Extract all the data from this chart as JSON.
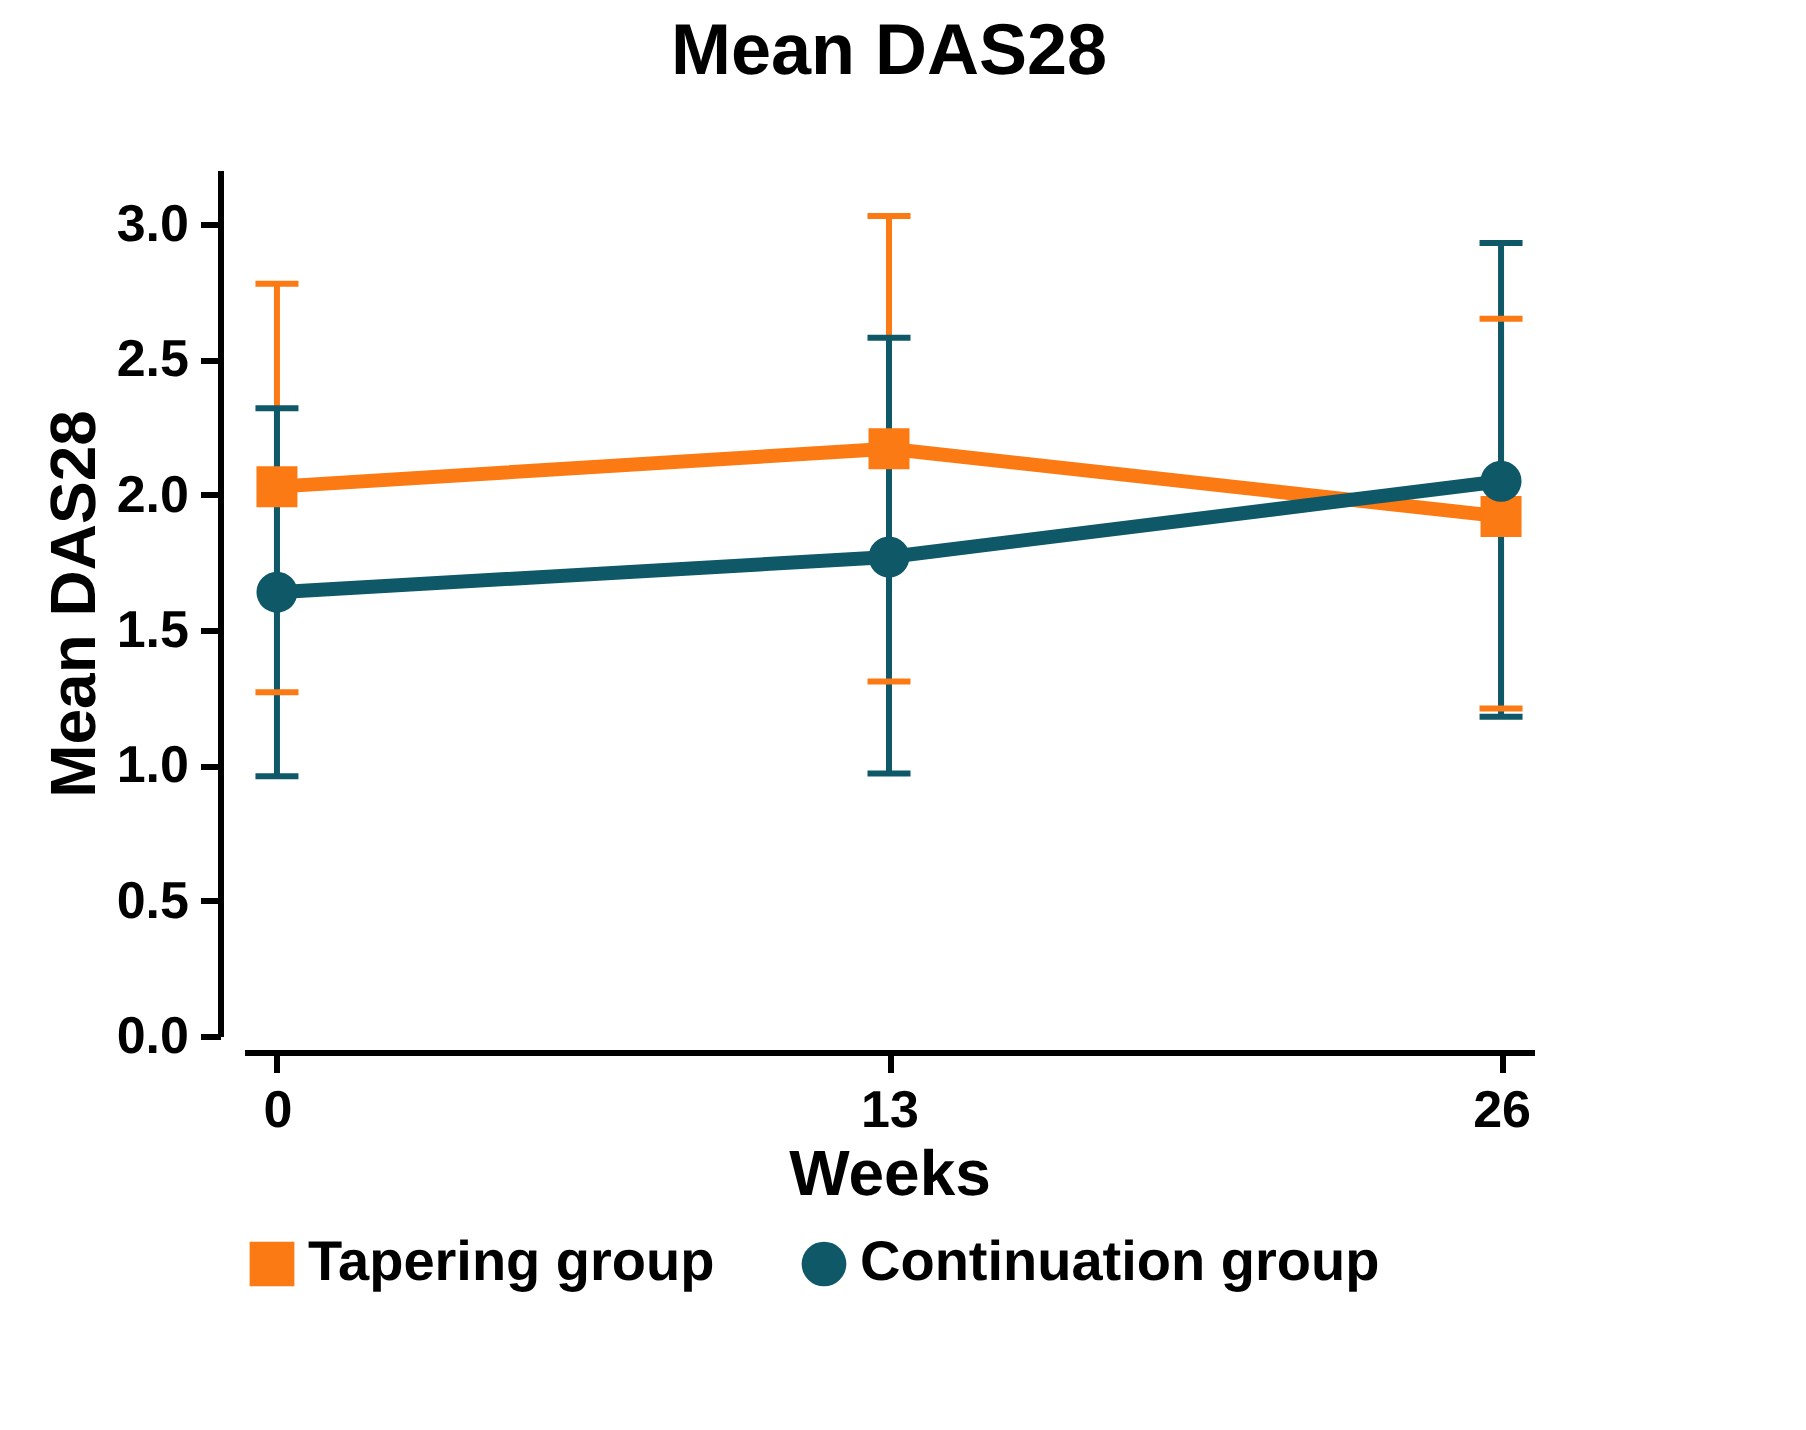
{
  "chart_data": {
    "type": "line",
    "title": "Mean DAS28",
    "xlabel": "Weeks",
    "ylabel": "Mean DAS28",
    "x": [
      0,
      13,
      26
    ],
    "xlim": [
      -0.7,
      26.7
    ],
    "xticks": [
      0,
      13,
      26
    ],
    "ylim": [
      0,
      3.2
    ],
    "yticks": [
      {
        "value": 0,
        "label": "0.0"
      },
      {
        "value": 0.5,
        "label": "0.5"
      },
      {
        "value": 1,
        "label": "1.0"
      },
      {
        "value": 1.5,
        "label": "1.5"
      },
      {
        "value": 2,
        "label": "2.0"
      },
      {
        "value": 2.5,
        "label": "2.5"
      },
      {
        "value": 3,
        "label": "3.0"
      }
    ],
    "series": [
      {
        "name": "Tapering group",
        "color": "#fb7a14",
        "marker": "square",
        "values": [
          2.03,
          2.17,
          1.92
        ],
        "errors": [
          [
            1.27,
            2.78
          ],
          [
            1.31,
            3.03
          ],
          [
            1.21,
            2.65
          ]
        ]
      },
      {
        "name": "Continuation group",
        "color": "#0f5868",
        "marker": "circle",
        "values": [
          1.64,
          1.77,
          2.05
        ],
        "errors": [
          [
            0.96,
            2.32
          ],
          [
            0.97,
            2.58
          ],
          [
            1.18,
            2.93
          ]
        ]
      }
    ],
    "legend": "bottom",
    "grid": false,
    "line_style": "solid"
  }
}
